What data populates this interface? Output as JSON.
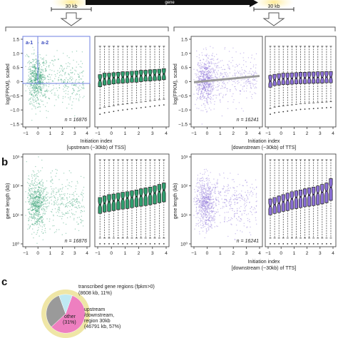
{
  "header": {
    "scale_left": "30 kb",
    "scale_right": "30 kb",
    "gene_label": "gene"
  },
  "panels": {
    "a_sub1": "a-1",
    "a_sub2": "a-2",
    "b_label": "b",
    "c_label": "c"
  },
  "colors": {
    "upstream_green": "#2f9e6e",
    "downstream_purple": "#8a6fd6",
    "trend_gray": "#999999",
    "pie_yellow": "#efe6a6",
    "pie_pink": "#ee7fc0",
    "pie_cyan": "#bfe9f3",
    "pie_gray": "#9a9a9a",
    "highlight_box": "#6f7fe0"
  },
  "chart_data": [
    {
      "type": "scatter",
      "id": "a_up_scatter",
      "xlabel": "Initiation index",
      "xlabel2": "[upstream (~30kb) of TSS]",
      "ylabel": "log(FPKM), scaled",
      "xlim": [
        -1,
        4
      ],
      "ylim": [
        -1.5,
        1.5
      ],
      "xticks": [
        "−1",
        "0",
        "1",
        "2",
        "3",
        "4"
      ],
      "yticks": [
        "1.5",
        "1.0",
        "0.5",
        "0",
        "−0.5",
        "−1.0",
        "−1.5"
      ],
      "n_label": "n = 16876"
    },
    {
      "type": "box",
      "id": "a_up_box",
      "categories": [
        "−1",
        "0",
        "1",
        "2",
        "3",
        "4"
      ],
      "medians": [
        0.05,
        0.1,
        0.12,
        0.14,
        0.15,
        0.16,
        0.17,
        0.18,
        0.19,
        0.21,
        0.22,
        0.23,
        0.24,
        0.25,
        0.27
      ],
      "q1": [
        -0.18,
        -0.12,
        -0.1,
        -0.08,
        -0.06,
        -0.05,
        -0.04,
        -0.02,
        -0.02,
        0.0,
        0.02,
        0.02,
        0.04,
        0.05,
        0.07
      ],
      "q3": [
        0.25,
        0.3,
        0.3,
        0.32,
        0.33,
        0.35,
        0.35,
        0.37,
        0.38,
        0.4,
        0.4,
        0.42,
        0.43,
        0.44,
        0.46
      ],
      "whisker_lo": [
        -0.95,
        -0.9,
        -0.88,
        -0.85,
        -0.82,
        -0.8,
        -0.78,
        -0.76,
        -0.74,
        -0.72,
        -0.7,
        -0.68,
        -0.66,
        -0.64,
        -0.62
      ],
      "whisker_hi": [
        1.25,
        1.25,
        1.25,
        1.25,
        1.25,
        1.25,
        1.25,
        1.25,
        1.25,
        1.25,
        1.25,
        1.25,
        1.25,
        1.25,
        1.25
      ],
      "ylim": [
        -1.5,
        1.5
      ]
    },
    {
      "type": "scatter",
      "id": "a_down_scatter",
      "xlabel": "Initiation index",
      "xlabel2": "[downstream (~30kb) of TTS]",
      "ylabel": "log(FPKM), scaled",
      "xlim": [
        -1,
        4
      ],
      "ylim": [
        -1.5,
        1.5
      ],
      "xticks": [
        "−1",
        "0",
        "1",
        "2",
        "3",
        "4"
      ],
      "yticks": [
        "1.5",
        "1.0",
        "0.5",
        "0",
        "−0.5",
        "−1.0",
        "−1.5"
      ],
      "n_label": "n = 16241",
      "trend": [
        [
          -1,
          -0.02
        ],
        [
          4,
          0.2
        ]
      ]
    },
    {
      "type": "box",
      "id": "a_down_box",
      "categories": [
        "−1",
        "0",
        "1",
        "2",
        "3",
        "4"
      ],
      "medians": [
        0.02,
        0.06,
        0.08,
        0.1,
        0.1,
        0.11,
        0.12,
        0.13,
        0.13,
        0.14,
        0.14,
        0.15,
        0.15,
        0.16,
        0.16
      ],
      "q1": [
        -0.2,
        -0.14,
        -0.12,
        -0.1,
        -0.1,
        -0.09,
        -0.08,
        -0.07,
        -0.07,
        -0.06,
        -0.06,
        -0.05,
        -0.05,
        -0.04,
        -0.04
      ],
      "q3": [
        0.22,
        0.26,
        0.28,
        0.3,
        0.3,
        0.31,
        0.32,
        0.33,
        0.33,
        0.34,
        0.34,
        0.35,
        0.35,
        0.36,
        0.36
      ],
      "whisker_lo": [
        -0.95,
        -0.9,
        -0.88,
        -0.86,
        -0.84,
        -0.82,
        -0.8,
        -0.78,
        -0.77,
        -0.76,
        -0.75,
        -0.74,
        -0.73,
        -0.72,
        -0.71
      ],
      "whisker_hi": [
        1.25,
        1.25,
        1.25,
        1.25,
        1.25,
        1.25,
        1.25,
        1.25,
        1.25,
        1.25,
        1.25,
        1.25,
        1.25,
        1.25,
        1.25
      ],
      "ylim": [
        -1.5,
        1.5
      ]
    },
    {
      "type": "scatter",
      "id": "b_up_scatter",
      "xlabel": "",
      "ylabel": "gene length (kb)",
      "xlim": [
        -1,
        4
      ],
      "ylim_log10": [
        0,
        3
      ],
      "xticks": [
        "−1",
        "0",
        "1",
        "2",
        "3",
        "4"
      ],
      "yticks": [
        "10³",
        "10²",
        "10¹",
        "10⁰"
      ],
      "n_label": "n = 16876"
    },
    {
      "type": "box",
      "id": "b_up_box",
      "categories": [
        "−1",
        "0",
        "1",
        "2",
        "3",
        "4"
      ],
      "medians_log10": [
        1.35,
        1.4,
        1.45,
        1.48,
        1.5,
        1.55,
        1.58,
        1.6,
        1.63,
        1.65,
        1.68,
        1.72,
        1.75,
        1.8,
        1.85
      ],
      "q1_log10": [
        1.05,
        1.1,
        1.12,
        1.15,
        1.18,
        1.2,
        1.22,
        1.25,
        1.28,
        1.3,
        1.32,
        1.35,
        1.38,
        1.42,
        1.45
      ],
      "q3_log10": [
        1.6,
        1.65,
        1.7,
        1.72,
        1.75,
        1.78,
        1.8,
        1.83,
        1.86,
        1.9,
        1.93,
        1.96,
        2.0,
        2.05,
        2.1
      ],
      "whisker_lo_log10": [
        0.2,
        0.2,
        0.2,
        0.2,
        0.2,
        0.2,
        0.2,
        0.2,
        0.2,
        0.2,
        0.2,
        0.2,
        0.2,
        0.2,
        0.2
      ],
      "whisker_hi_log10": [
        2.9,
        2.9,
        2.9,
        2.9,
        2.9,
        2.9,
        2.9,
        2.9,
        2.9,
        2.9,
        2.9,
        2.9,
        2.9,
        2.9,
        2.9
      ]
    },
    {
      "type": "scatter",
      "id": "b_down_scatter",
      "xlabel": "Initiation index",
      "xlabel2": "[downstream (~30kb) of TTS]",
      "ylabel": "gene length (kb)",
      "xlim": [
        -1,
        4
      ],
      "ylim_log10": [
        0,
        3
      ],
      "xticks": [
        "−1",
        "0",
        "1",
        "2",
        "3",
        "4"
      ],
      "yticks": [
        "10³",
        "10²",
        "10¹",
        "10⁰"
      ],
      "n_label": "n = 16241"
    },
    {
      "type": "box",
      "id": "b_down_box",
      "categories": [
        "−1",
        "0",
        "1",
        "2",
        "3",
        "4"
      ],
      "medians_log10": [
        1.3,
        1.35,
        1.4,
        1.45,
        1.5,
        1.55,
        1.6,
        1.62,
        1.65,
        1.68,
        1.7,
        1.75,
        1.78,
        1.82,
        1.95
      ],
      "q1_log10": [
        1.0,
        1.05,
        1.08,
        1.12,
        1.15,
        1.2,
        1.22,
        1.25,
        1.28,
        1.3,
        1.32,
        1.35,
        1.38,
        1.42,
        1.5
      ],
      "q3_log10": [
        1.55,
        1.6,
        1.65,
        1.7,
        1.75,
        1.8,
        1.83,
        1.86,
        1.9,
        1.93,
        1.96,
        2.0,
        2.05,
        2.1,
        2.25
      ],
      "whisker_lo_log10": [
        0.2,
        0.2,
        0.2,
        0.2,
        0.2,
        0.2,
        0.2,
        0.2,
        0.2,
        0.2,
        0.2,
        0.2,
        0.2,
        0.2,
        0.2
      ],
      "whisker_hi_log10": [
        2.9,
        2.9,
        2.9,
        2.9,
        2.9,
        2.9,
        2.9,
        2.9,
        2.9,
        2.9,
        2.9,
        2.9,
        2.9,
        2.9,
        2.9
      ]
    },
    {
      "type": "pie",
      "id": "c_pie",
      "slices": [
        {
          "label": "upstream /downstream, region 30kb (46791 kb, 57%)",
          "value": 57,
          "color": "#ee7fc0"
        },
        {
          "label": "other (31%)",
          "value": 31,
          "color": "#9a9a9a"
        },
        {
          "label": "transcribed gene regions (fpkm>0) (8608 kb, 11%)",
          "value": 11,
          "color": "#bfe9f3"
        }
      ],
      "annotations": {
        "transcribed": "transcribed gene regions (fpkm>0)",
        "transcribed2": "(8608 kb, 11%)",
        "updown1": "upstream",
        "updown2": "/downstream,",
        "updown3": "region 30kb",
        "updown4": "(46791 kb, 57%)",
        "other1": "other",
        "other2": "(31%)"
      }
    }
  ]
}
